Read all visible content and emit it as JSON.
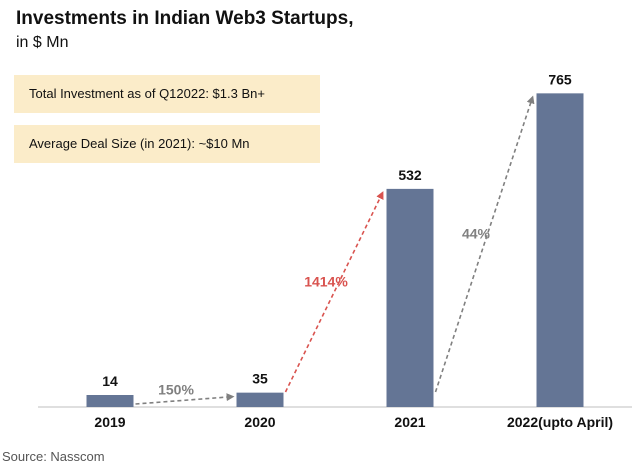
{
  "header": {
    "title": "Investments in Indian Web3 Startups,",
    "subtitle": "in $ Mn"
  },
  "notes": [
    "Total Investment as of Q12022: $1.3 Bn+",
    "Average Deal Size (in 2021): ~$10 Mn"
  ],
  "source": "Source: Nasscom",
  "colors": {
    "bar": "#647595",
    "growth_default": "#808080",
    "growth_highlight": "#d9534f",
    "note_bg": "#fbecc9"
  },
  "chart_data": {
    "type": "bar",
    "title": "Investments in Indian Web3 Startups,",
    "subtitle": "in $ Mn",
    "xlabel": "",
    "ylabel": "",
    "categories": [
      "2019",
      "2020",
      "2021",
      "2022(upto April)"
    ],
    "values": [
      14,
      35,
      532,
      765
    ],
    "data_labels": [
      "14",
      "35",
      "532",
      "765"
    ],
    "ylim": [
      0,
      800
    ],
    "grid": false,
    "legend": "none",
    "growth_annotations": [
      {
        "from": "2019",
        "to": "2020",
        "label": "150%",
        "highlight": false
      },
      {
        "from": "2020",
        "to": "2021",
        "label": "1414%",
        "highlight": true
      },
      {
        "from": "2021",
        "to": "2022(upto April)",
        "label": "44%",
        "highlight": false
      }
    ]
  }
}
